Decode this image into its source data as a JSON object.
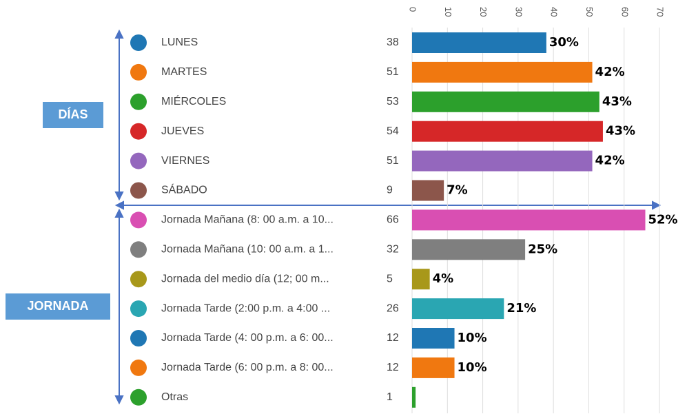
{
  "chart_data": {
    "type": "bar",
    "groups": [
      "DÍAS",
      "JORNADA"
    ],
    "categories": [
      "LUNES",
      "MARTES",
      "MIÉRCOLES",
      "JUEVES",
      "VIERNES",
      "SÁBADO",
      "Jornada Mañana (8: 00 a.m. a 10...",
      "Jornada Mañana (10: 00 a.m. a 1...",
      "Jornada del medio día (12; 00 m...",
      "Jornada Tarde (2:00 p.m. a 4:00 ...",
      "Jornada Tarde (4: 00 p.m. a 6: 00...",
      "Jornada Tarde (6: 00 p.m. a 8: 00...",
      "Otras"
    ],
    "values": [
      38,
      51,
      53,
      54,
      51,
      9,
      66,
      32,
      5,
      26,
      12,
      12,
      1
    ],
    "share_labels": [
      "30%",
      "42%",
      "43%",
      "43%",
      "42%",
      "7%",
      "52%",
      "25%",
      "4%",
      "21%",
      "10%",
      "10%",
      null
    ],
    "colors": [
      "#1f77b4",
      "#f07810",
      "#2ca02c",
      "#d62728",
      "#9467bd",
      "#8c564b",
      "#d94fb2",
      "#7f7f7f",
      "#a8981a",
      "#2aa6b2",
      "#1f77b4",
      "#f07810",
      "#2ca02c"
    ],
    "xlim": [
      0,
      70
    ],
    "xticks": [
      0,
      10,
      20,
      30,
      40,
      50,
      60,
      70
    ],
    "grid": true
  }
}
